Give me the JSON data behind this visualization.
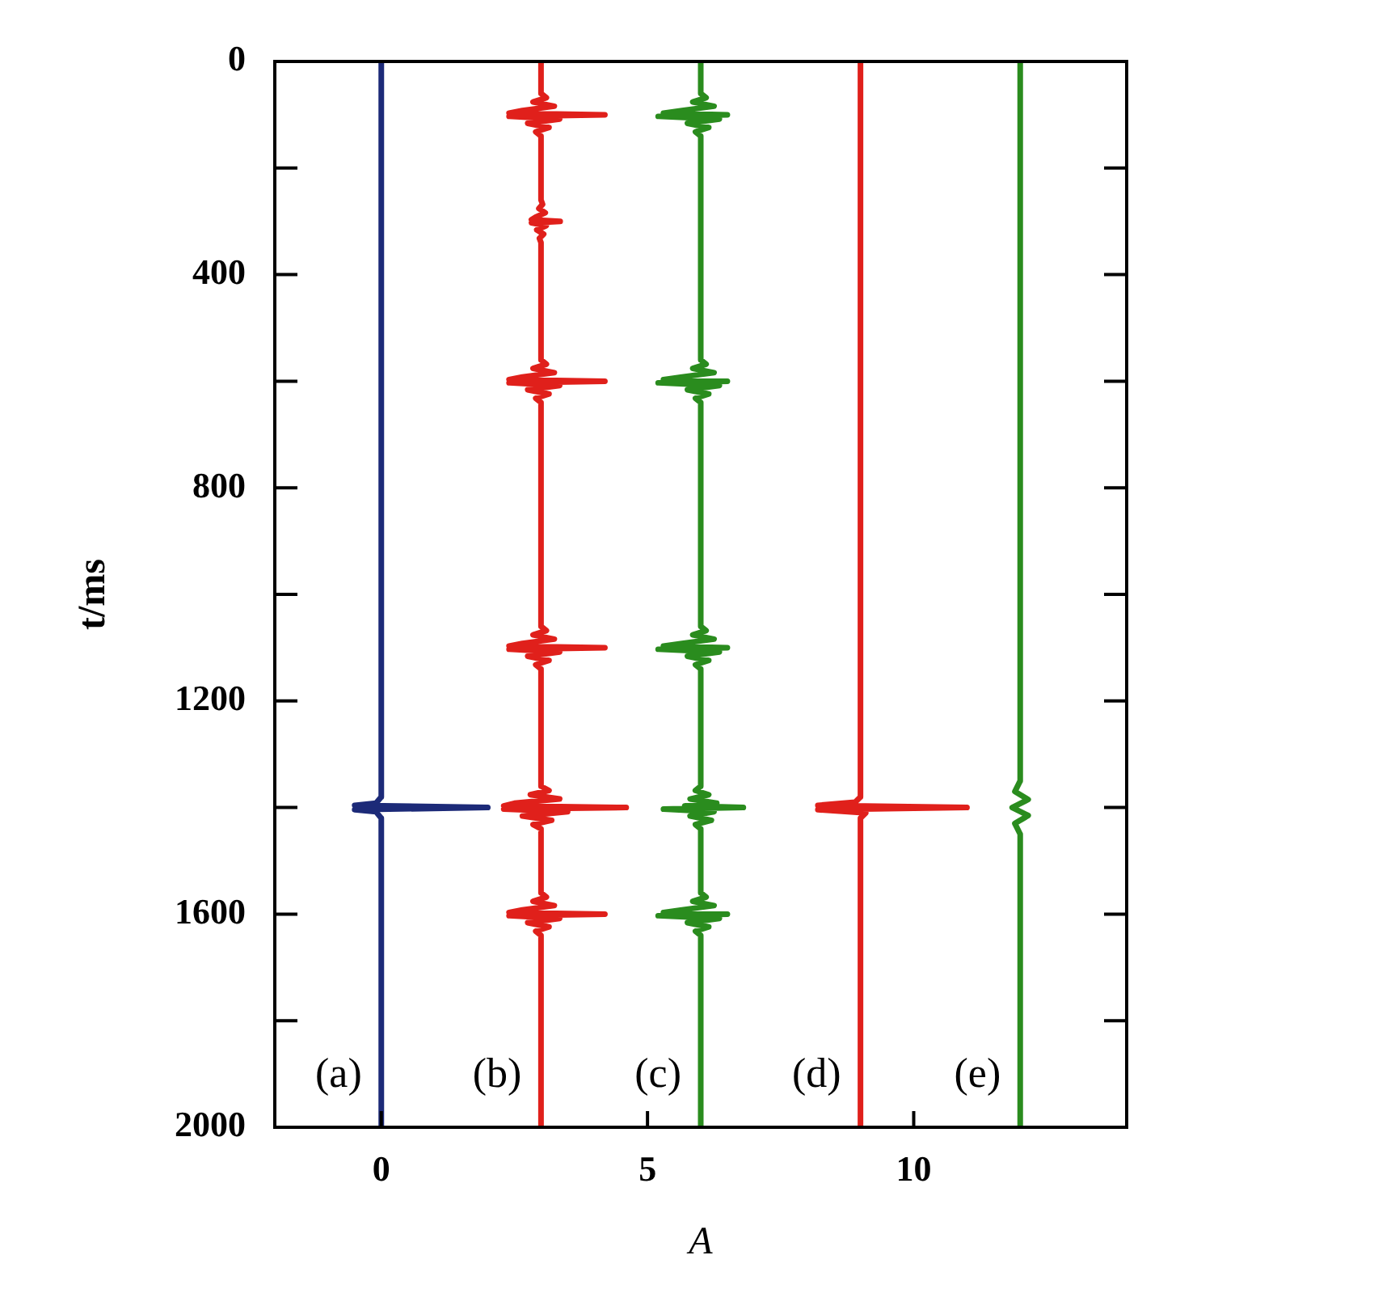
{
  "chart_data": {
    "type": "line",
    "xlabel": "A",
    "ylabel": "t/ms",
    "xlim": [
      -2,
      14
    ],
    "xticks": [
      0,
      5,
      10
    ],
    "ylim": [
      2000,
      0
    ],
    "yticks": [
      0,
      {
        "value": 200,
        "label": null
      },
      400,
      {
        "value": 600,
        "label": null
      },
      800,
      {
        "value": 1000,
        "label": null
      },
      1200,
      {
        "value": 1400,
        "label": null
      },
      1600,
      {
        "value": 1800,
        "label": null
      },
      2000
    ],
    "grid": false,
    "legend": false,
    "marker": "none",
    "line_style": "solid",
    "series": [
      {
        "name": "(a)",
        "color": "#1c2a78",
        "x": [
          0,
          0,
          -0.1,
          -0.5,
          2.0,
          -0.5,
          -0.1,
          0,
          0
        ],
        "values": [
          0,
          1380,
          1392,
          1396,
          1400,
          1404,
          1408,
          1420,
          2000
        ]
      },
      {
        "name": "(b)",
        "color": "#e0201b",
        "x": [
          3,
          3,
          3.1,
          2.85,
          3.25,
          2.65,
          2.4,
          4.2,
          2.4,
          3.35,
          2.75,
          3.15,
          2.9,
          3,
          3,
          3.03,
          2.96,
          3.08,
          2.9,
          2.82,
          3.36,
          2.82,
          3.1,
          2.92,
          3.05,
          2.97,
          3,
          3,
          3.1,
          2.85,
          3.25,
          2.65,
          2.4,
          4.2,
          2.4,
          3.35,
          2.75,
          3.15,
          2.9,
          3,
          3,
          3.1,
          2.85,
          3.25,
          2.65,
          2.4,
          4.2,
          2.4,
          3.35,
          2.75,
          3.15,
          2.9,
          3,
          3,
          3.15,
          2.8,
          3.35,
          2.5,
          2.3,
          4.6,
          2.3,
          3.5,
          2.65,
          3.2,
          2.85,
          3,
          3,
          3.1,
          2.85,
          3.25,
          2.65,
          2.4,
          4.2,
          2.4,
          3.35,
          2.75,
          3.15,
          2.9,
          3,
          3
        ],
        "values": [
          0,
          60,
          68,
          76,
          84,
          92,
          97,
          100,
          103,
          108,
          116,
          124,
          132,
          140,
          260,
          268,
          276,
          284,
          292,
          297,
          300,
          303,
          308,
          316,
          324,
          332,
          340,
          560,
          568,
          576,
          584,
          592,
          597,
          600,
          603,
          608,
          616,
          624,
          632,
          640,
          1060,
          1068,
          1076,
          1084,
          1092,
          1097,
          1100,
          1103,
          1108,
          1116,
          1124,
          1132,
          1140,
          1360,
          1368,
          1376,
          1384,
          1392,
          1397,
          1400,
          1403,
          1408,
          1416,
          1424,
          1432,
          1440,
          1560,
          1568,
          1576,
          1584,
          1592,
          1597,
          1600,
          1603,
          1608,
          1616,
          1624,
          1632,
          1640,
          2000
        ]
      },
      {
        "name": "(c)",
        "color": "#2a8c1e",
        "x": [
          6,
          6,
          6.1,
          5.85,
          6.25,
          5.65,
          5.3,
          6.5,
          5.2,
          6.35,
          5.75,
          6.15,
          5.9,
          6,
          6,
          6.1,
          5.85,
          6.25,
          5.65,
          5.3,
          6.5,
          5.2,
          6.35,
          5.75,
          6.15,
          5.9,
          6,
          6,
          6.1,
          5.85,
          6.25,
          5.65,
          5.3,
          6.5,
          5.2,
          6.35,
          5.75,
          6.15,
          5.9,
          6,
          6,
          5.9,
          6.15,
          5.8,
          6.3,
          5.7,
          6.8,
          5.3,
          6.25,
          5.8,
          6.2,
          5.9,
          6,
          6,
          6.1,
          5.85,
          6.25,
          5.65,
          5.3,
          6.5,
          5.2,
          6.35,
          5.75,
          6.15,
          5.9,
          6,
          6
        ],
        "values": [
          0,
          60,
          68,
          76,
          84,
          92,
          97,
          100,
          103,
          108,
          116,
          124,
          132,
          140,
          560,
          568,
          576,
          584,
          592,
          597,
          600,
          603,
          608,
          616,
          624,
          632,
          640,
          1060,
          1068,
          1076,
          1084,
          1092,
          1097,
          1100,
          1103,
          1108,
          1116,
          1124,
          1132,
          1140,
          1360,
          1368,
          1376,
          1384,
          1392,
          1397,
          1400,
          1403,
          1408,
          1416,
          1424,
          1432,
          1440,
          1560,
          1568,
          1576,
          1584,
          1592,
          1597,
          1600,
          1603,
          1608,
          1616,
          1624,
          1632,
          1640,
          2000
        ]
      },
      {
        "name": "(d)",
        "color": "#e0201b",
        "x": [
          9,
          9,
          8.9,
          8.2,
          11,
          8.2,
          9.1,
          9,
          9
        ],
        "values": [
          0,
          1380,
          1390,
          1396,
          1400,
          1404,
          1410,
          1420,
          2000
        ]
      },
      {
        "name": "(e)",
        "color": "#2a8c1e",
        "x": [
          12,
          12,
          11.9,
          12.15,
          11.85,
          12.15,
          11.9,
          12,
          12
        ],
        "values": [
          0,
          1350,
          1370,
          1385,
          1400,
          1415,
          1430,
          1450,
          2000
        ]
      }
    ]
  }
}
